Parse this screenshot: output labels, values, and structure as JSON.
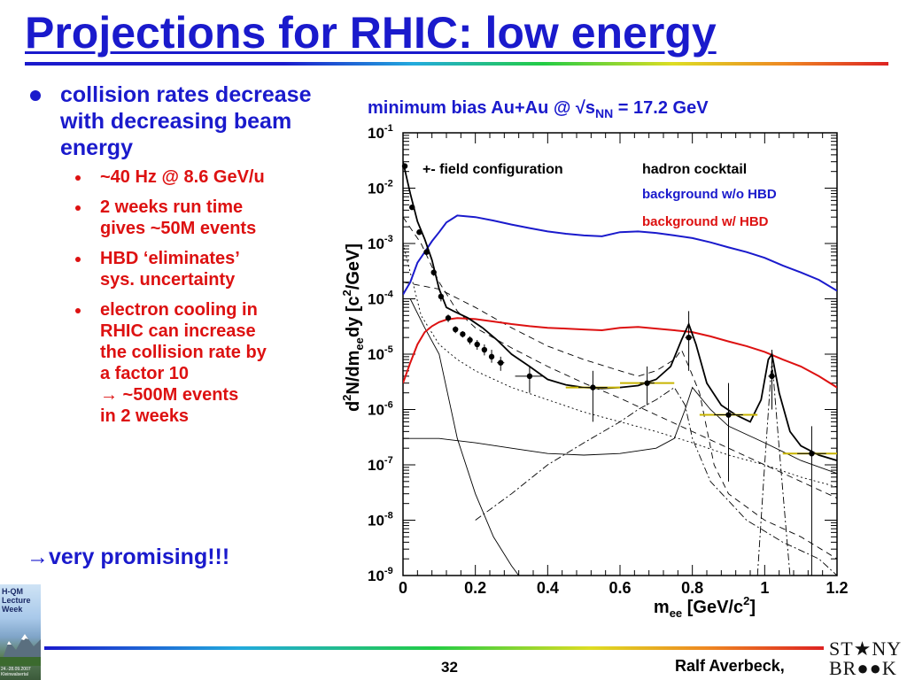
{
  "slide": {
    "title": "Projections for RHIC: low energy",
    "bullets": {
      "main": "collision rates decrease with decreasing beam energy",
      "sub": [
        {
          "lines": [
            "~40 Hz @ 8.6 GeV/u"
          ]
        },
        {
          "lines": [
            "2 weeks run time",
            "gives ~50M events"
          ]
        },
        {
          "lines": [
            "HBD ‘eliminates’",
            "sys. uncertainty"
          ]
        },
        {
          "lines": [
            "electron cooling in",
            "RHIC can increase",
            "the collision rate by",
            "a factor 10",
            "→ ~500M events",
            "in 2 weeks"
          ]
        }
      ],
      "conclusion": "→very promising!!!"
    },
    "footer": {
      "page": "32",
      "author": "Ralf Averbeck,",
      "logo_top": "ST★NY",
      "logo_bottom": "BR●●K"
    },
    "badge": {
      "lines": [
        "H-QM",
        "Lecture",
        "Week"
      ],
      "date": "24.-28.09.2007 Kleinwalsertal"
    }
  },
  "colors": {
    "title": "#1a1acc",
    "sub_bullets": "#dd1111",
    "bg_no_hbd": "#1a1acc",
    "bg_hbd": "#dd1111",
    "projection_band": "#c8b400"
  },
  "chart_data": {
    "type": "line",
    "title": "minimum bias Au+Au @ √s_NN = 17.2 GeV",
    "title_parts": {
      "pre": "minimum bias Au+Au @ ",
      "sqrt": "√",
      "s": "s",
      "sub": "NN",
      "post": " = 17.2 GeV"
    },
    "xlabel": "m_ee [GeV/c²]",
    "xlabel_parts": {
      "m": "m",
      "sub": "ee",
      "rest": " [GeV/c",
      "sup": "2",
      "end": "]"
    },
    "ylabel": "d²N/dm_ee dy [c²/GeV]",
    "ylabel_parts": {
      "d": "d",
      "sup1": "2",
      "mid": "N/dm",
      "sub": "ee",
      "dy": "dy [c",
      "sup2": "2",
      "end": "/GeV]"
    },
    "xlim": [
      0,
      1.2
    ],
    "ylim": [
      1e-09,
      0.1
    ],
    "y_scale": "log",
    "x_ticks": [
      0,
      0.2,
      0.4,
      0.6,
      0.8,
      1,
      1.2
    ],
    "x_tick_labels": [
      "0",
      "0.2",
      "0.4",
      "0.6",
      "0.8",
      "1",
      "1.2"
    ],
    "y_ticks": [
      -1,
      -2,
      -3,
      -4,
      -5,
      -6,
      -7,
      -8,
      -9
    ],
    "y_tick_labels": [
      "10",
      "10",
      "10",
      "10",
      "10",
      "10",
      "10",
      "10",
      "10"
    ],
    "y_tick_exponents": [
      "-1",
      "-2",
      "-3",
      "-4",
      "-5",
      "-6",
      "-7",
      "-8",
      "-9"
    ],
    "annotations": {
      "field": "+- field configuration",
      "cocktail": "hadron cocktail",
      "bg_no_hbd": "background w/o HBD",
      "bg_hbd": "background w/ HBD"
    },
    "series": [
      {
        "key": "background_wo_hbd",
        "color": "#1a1acc",
        "x": [
          0.0,
          0.02,
          0.04,
          0.06,
          0.08,
          0.1,
          0.12,
          0.15,
          0.2,
          0.25,
          0.3,
          0.35,
          0.4,
          0.45,
          0.5,
          0.55,
          0.6,
          0.65,
          0.7,
          0.75,
          0.8,
          0.85,
          0.9,
          0.95,
          1.0,
          1.05,
          1.1,
          1.15,
          1.2
        ],
        "y": [
          0.00012,
          0.0002,
          0.00045,
          0.0007,
          0.0011,
          0.0016,
          0.0024,
          0.0032,
          0.003,
          0.0026,
          0.0022,
          0.0019,
          0.00165,
          0.0015,
          0.0014,
          0.00135,
          0.0016,
          0.00165,
          0.00155,
          0.0014,
          0.00125,
          0.00105,
          0.00085,
          0.0007,
          0.00055,
          0.0004,
          0.0003,
          0.00022,
          0.00014
        ]
      },
      {
        "key": "background_w_hbd",
        "color": "#dd1111",
        "x": [
          0.0,
          0.02,
          0.04,
          0.06,
          0.08,
          0.1,
          0.12,
          0.15,
          0.2,
          0.25,
          0.3,
          0.35,
          0.4,
          0.45,
          0.5,
          0.55,
          0.6,
          0.65,
          0.7,
          0.75,
          0.8,
          0.85,
          0.9,
          0.95,
          1.0,
          1.05,
          1.1,
          1.15,
          1.2
        ],
        "y": [
          3e-06,
          7e-06,
          1.5e-05,
          2.5e-05,
          3.2e-05,
          3.8e-05,
          4.2e-05,
          4.5e-05,
          4.3e-05,
          3.9e-05,
          3.5e-05,
          3.2e-05,
          3e-05,
          2.9e-05,
          2.8e-05,
          2.7e-05,
          3e-05,
          3.1e-05,
          2.9e-05,
          2.7e-05,
          2.5e-05,
          2.1e-05,
          1.7e-05,
          1.4e-05,
          1.1e-05,
          8e-06,
          6e-06,
          4e-06,
          2.5e-06
        ]
      },
      {
        "key": "hadron_cocktail",
        "color": "#000000",
        "x": [
          0.0,
          0.02,
          0.04,
          0.06,
          0.08,
          0.1,
          0.12,
          0.14,
          0.18,
          0.22,
          0.26,
          0.3,
          0.35,
          0.4,
          0.45,
          0.5,
          0.55,
          0.6,
          0.65,
          0.7,
          0.74,
          0.77,
          0.79,
          0.81,
          0.84,
          0.88,
          0.92,
          0.96,
          0.99,
          1.01,
          1.02,
          1.04,
          1.07,
          1.1,
          1.15,
          1.2
        ],
        "y": [
          0.03,
          0.008,
          0.0025,
          0.0012,
          0.0005,
          0.00015,
          7e-05,
          6e-05,
          4.5e-05,
          3e-05,
          1.8e-05,
          1e-05,
          6e-06,
          3.5e-06,
          2.8e-06,
          2.5e-06,
          2.4e-06,
          2.5e-06,
          2.7e-06,
          3.5e-06,
          6e-06,
          1.8e-05,
          3.5e-05,
          1.5e-05,
          3e-06,
          1.2e-06,
          8e-07,
          6e-07,
          1.5e-06,
          8e-06,
          1e-05,
          2e-06,
          4e-07,
          2.2e-07,
          1.5e-07,
          1.2e-07
        ]
      }
    ],
    "component_curves": [
      {
        "style": "dash",
        "x": [
          0.0,
          0.05,
          0.1,
          0.15,
          0.2,
          0.3,
          0.4,
          0.5,
          0.6,
          0.7,
          0.8,
          0.9,
          1.0,
          1.1,
          1.2
        ],
        "y": [
          0.003,
          0.001,
          0.0002,
          6e-05,
          3e-05,
          1.3e-05,
          6e-06,
          3e-06,
          1.6e-06,
          8e-07,
          4e-07,
          2e-07,
          1e-07,
          5e-08,
          2.5e-08
        ]
      },
      {
        "style": "dot",
        "x": [
          0.0,
          0.05,
          0.1,
          0.15,
          0.2,
          0.3,
          0.4,
          0.5,
          0.6,
          0.7,
          0.8,
          0.9,
          1.0,
          1.1,
          1.2
        ],
        "y": [
          0.001,
          5e-05,
          1.5e-05,
          8e-06,
          5e-06,
          2.5e-06,
          1.5e-06,
          9e-07,
          6e-07,
          4e-07,
          2.5e-07,
          1.5e-07,
          1e-07,
          6e-08,
          4e-08
        ]
      },
      {
        "style": "dash",
        "x": [
          0.0,
          0.1,
          0.2,
          0.3,
          0.4,
          0.5,
          0.6,
          0.65,
          0.7,
          0.75,
          0.77,
          0.79,
          0.82,
          0.86,
          0.9,
          1.0,
          1.1,
          1.2
        ],
        "y": [
          0.0002,
          0.00015,
          7e-05,
          3e-05,
          1.4e-05,
          8e-06,
          5e-06,
          4e-06,
          5e-06,
          8e-06,
          1.2e-05,
          6e-06,
          2e-06,
          1e-07,
          3e-08,
          1e-08,
          5e-09,
          2e-09
        ]
      },
      {
        "style": "solid",
        "x": [
          0.0,
          0.1,
          0.2,
          0.3,
          0.4,
          0.5,
          0.6,
          0.7,
          0.75,
          0.78,
          0.8,
          0.85,
          0.9,
          1.0,
          1.1,
          1.2
        ],
        "y": [
          3e-07,
          3e-07,
          2.5e-07,
          2e-07,
          1.6e-07,
          1.5e-07,
          1.6e-07,
          2e-07,
          3e-07,
          1e-06,
          2.5e-06,
          1e-06,
          5e-07,
          2.5e-07,
          1.2e-07,
          7e-08
        ]
      },
      {
        "style": "solid",
        "x": [
          0.02,
          0.06,
          0.1,
          0.15,
          0.2,
          0.25,
          0.3,
          0.32
        ],
        "y": [
          0.0001,
          3e-05,
          1e-05,
          3e-07,
          3e-08,
          5e-09,
          1.5e-09,
          1e-09
        ]
      },
      {
        "style": "dashdot",
        "x": [
          0.2,
          0.3,
          0.4,
          0.5,
          0.6,
          0.65,
          0.7,
          0.75,
          0.78,
          0.8,
          0.85,
          0.95,
          1.05,
          1.15,
          1.2
        ],
        "y": [
          1e-08,
          3e-08,
          1e-07,
          2.5e-07,
          6e-07,
          1e-06,
          1.5e-06,
          2.5e-06,
          1.2e-06,
          3e-07,
          5e-08,
          1e-08,
          4e-09,
          2e-09,
          1e-09
        ]
      },
      {
        "style": "dashdot",
        "x": [
          0.98,
          1.0,
          1.02,
          1.04,
          1.07
        ],
        "y": [
          1e-09,
          1e-07,
          8e-06,
          2e-07,
          1e-09
        ]
      }
    ],
    "data_points": {
      "x": [
        0.005,
        0.025,
        0.045,
        0.065,
        0.085,
        0.105,
        0.125,
        0.145,
        0.165,
        0.185,
        0.205,
        0.225,
        0.245,
        0.27,
        0.35,
        0.525,
        0.675,
        0.79,
        0.9,
        1.02,
        1.13
      ],
      "y": [
        0.025,
        0.0045,
        0.0016,
        0.0007,
        0.0003,
        0.00011,
        4.5e-05,
        2.8e-05,
        2.3e-05,
        1.8e-05,
        1.5e-05,
        1.2e-05,
        9e-06,
        7e-06,
        4e-06,
        2.5e-06,
        3e-06,
        2e-05,
        8e-07,
        4e-06,
        1.6e-07
      ],
      "xerr": [
        0.005,
        0.005,
        0.005,
        0.005,
        0.005,
        0.005,
        0.005,
        0.005,
        0.005,
        0.005,
        0.005,
        0.005,
        0.005,
        0.01,
        0.04,
        0.04,
        0.02,
        0.01,
        0.04,
        0.01,
        0.04
      ],
      "ylow": [
        0.023,
        0.0042,
        0.0015,
        0.00063,
        0.00026,
        9e-05,
        3.8e-05,
        2.4e-05,
        2e-05,
        1.5e-05,
        1.2e-05,
        9.5e-06,
        7e-06,
        5e-06,
        2e-06,
        6e-07,
        1.2e-06,
        5e-06,
        5e-08,
        1e-06,
        1e-09
      ],
      "yhigh": [
        0.027,
        0.0048,
        0.0017,
        0.00078,
        0.00035,
        0.00013,
        5.2e-05,
        3.2e-05,
        2.6e-05,
        2.1e-05,
        1.8e-05,
        1.5e-05,
        1.2e-05,
        9e-06,
        6e-06,
        5e-06,
        6e-06,
        6e-05,
        3e-06,
        1.2e-05,
        5e-07
      ]
    },
    "projection_bands": {
      "color": "#c8b400",
      "segments": [
        [
          0.45,
          0.6,
          2.5e-06
        ],
        [
          0.6,
          0.75,
          3e-06
        ],
        [
          0.82,
          0.98,
          8e-07
        ],
        [
          1.05,
          1.2,
          1.6e-07
        ]
      ]
    }
  }
}
